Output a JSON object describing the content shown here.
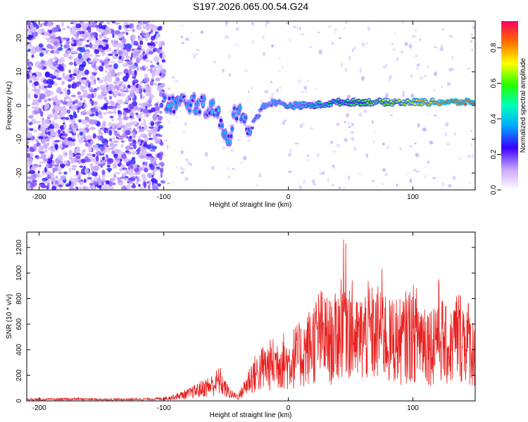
{
  "figure_title": "S197.2026.065.00.54.G24",
  "chart_data": [
    {
      "type": "heatmap",
      "title": "S197.2026.065.00.54.G24",
      "xlabel": "Height of straight line (km)",
      "ylabel": "Frequency (Hz)",
      "xlim": [
        -210,
        150
      ],
      "ylim": [
        -25,
        25
      ],
      "xticks": [
        -200,
        -100,
        0,
        100
      ],
      "yticks": [
        -20,
        -10,
        0,
        10,
        20
      ],
      "colorbar": {
        "label": "Normalized spectral amplitude",
        "range": [
          0,
          0.95
        ],
        "ticks": [
          0.0,
          0.2,
          0.4,
          0.6,
          0.8
        ],
        "tick_labels": [
          "0.0",
          "0.2",
          "0.4",
          "0.6",
          "0.8"
        ]
      },
      "description_regions": [
        {
          "x_range": [
            -210,
            -100
          ],
          "freq_range": [
            -25,
            25
          ],
          "amplitude": "low, noisy"
        },
        {
          "x_range": [
            -100,
            -30
          ],
          "freq_center": 0,
          "amplitude": "mixed 0.2-0.5"
        },
        {
          "x_range": [
            -30,
            150
          ],
          "freq_center": 1,
          "amplitude": "rising to 0.9"
        }
      ],
      "signal_ridge": [
        [
          -95,
          0
        ],
        [
          -80,
          1
        ],
        [
          -70,
          0
        ],
        [
          -60,
          -1
        ],
        [
          -55,
          -4
        ],
        [
          -52,
          -9
        ],
        [
          -48,
          -11
        ],
        [
          -45,
          -5
        ],
        [
          -40,
          0
        ],
        [
          -35,
          -4
        ],
        [
          -32,
          -8
        ],
        [
          -20,
          0
        ],
        [
          -10,
          1
        ],
        [
          0,
          0
        ],
        [
          20,
          0
        ],
        [
          40,
          1
        ],
        [
          60,
          1
        ],
        [
          80,
          1
        ],
        [
          100,
          1
        ],
        [
          120,
          1
        ],
        [
          150,
          1
        ]
      ]
    },
    {
      "type": "line",
      "xlabel": "Height of straight line (km)",
      "ylabel": "SNR (10 * v/v)",
      "xlim": [
        -210,
        150
      ],
      "ylim": [
        0,
        1320
      ],
      "xticks": [
        -200,
        -100,
        0,
        100
      ],
      "yticks": [
        0,
        200,
        400,
        600,
        800,
        1000,
        1200
      ],
      "color": "#e8201e",
      "series": [
        {
          "name": "SNR",
          "x": [
            -210,
            -190,
            -170,
            -150,
            -130,
            -110,
            -100,
            -90,
            -80,
            -70,
            -60,
            -55,
            -50,
            -45,
            -40,
            -35,
            -30,
            -25,
            -20,
            -15,
            -10,
            -5,
            0,
            5,
            10,
            15,
            20,
            25,
            30,
            35,
            40,
            45,
            50,
            55,
            60,
            65,
            70,
            75,
            80,
            85,
            90,
            95,
            100,
            105,
            110,
            115,
            120,
            125,
            130,
            135,
            140,
            145,
            150
          ],
          "values": [
            20,
            20,
            25,
            20,
            20,
            25,
            30,
            60,
            100,
            160,
            220,
            280,
            150,
            80,
            60,
            180,
            330,
            380,
            450,
            480,
            520,
            560,
            500,
            600,
            620,
            700,
            800,
            900,
            850,
            780,
            900,
            1320,
            1000,
            800,
            880,
            950,
            850,
            1050,
            780,
            850,
            800,
            880,
            920,
            900,
            850,
            760,
            1000,
            760,
            700,
            900,
            880,
            800,
            600
          ]
        }
      ]
    }
  ]
}
